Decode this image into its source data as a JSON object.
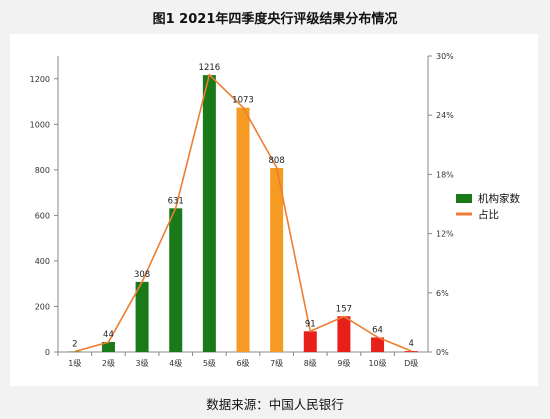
{
  "title": "图1 2021年四季度央行评级结果分布情况",
  "source": "数据来源：中国人民银行",
  "chart_data": {
    "type": "bar",
    "categories": [
      "1级",
      "2级",
      "3级",
      "4级",
      "5级",
      "6级",
      "7级",
      "8级",
      "9级",
      "10级",
      "D级"
    ],
    "series": [
      {
        "name": "机构家数",
        "type": "bar",
        "axis": "left",
        "values": [
          2,
          44,
          308,
          631,
          1216,
          1073,
          808,
          91,
          157,
          64,
          4
        ],
        "colors": [
          "#1a7a1a",
          "#1a7a1a",
          "#1a7a1a",
          "#1a7a1a",
          "#1a7a1a",
          "#f59a23",
          "#f59a23",
          "#e8201a",
          "#e8201a",
          "#e8201a",
          "#e8201a"
        ]
      },
      {
        "name": "占比",
        "type": "line",
        "axis": "right",
        "values": [
          0.05,
          1.0,
          7.1,
          14.6,
          28.1,
          24.8,
          18.7,
          2.1,
          3.6,
          1.5,
          0.1
        ],
        "color": "#ed7d31"
      }
    ],
    "y_left": {
      "min": 0,
      "max": 1300,
      "ticks": [
        0,
        200,
        400,
        600,
        800,
        1000,
        1200
      ]
    },
    "y_right": {
      "min": 0,
      "max": 30,
      "ticks": [
        "0%",
        "6%",
        "12%",
        "18%",
        "24%",
        "30%"
      ]
    },
    "legend_position": "right",
    "grid": false
  }
}
